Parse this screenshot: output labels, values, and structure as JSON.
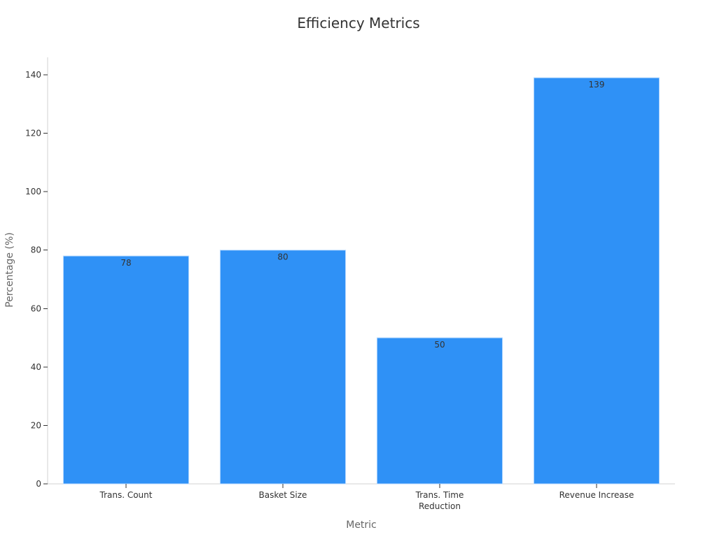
{
  "chart_data": {
    "type": "bar",
    "title": "Efficiency Metrics",
    "xlabel": "Metric",
    "ylabel": "Percentage (%)",
    "categories": [
      [
        "Trans. Count"
      ],
      [
        "Basket Size"
      ],
      [
        "Trans. Time",
        "Reduction"
      ],
      [
        "Revenue Increase"
      ]
    ],
    "values": [
      78,
      80,
      50,
      139
    ],
    "data_labels": [
      "78",
      "80",
      "50",
      "139"
    ],
    "ylim": [
      0,
      146
    ],
    "yticks": [
      0,
      20,
      40,
      60,
      80,
      100,
      120,
      140
    ],
    "bar_color": "#2f91f6",
    "grid": false,
    "legend": "none"
  }
}
